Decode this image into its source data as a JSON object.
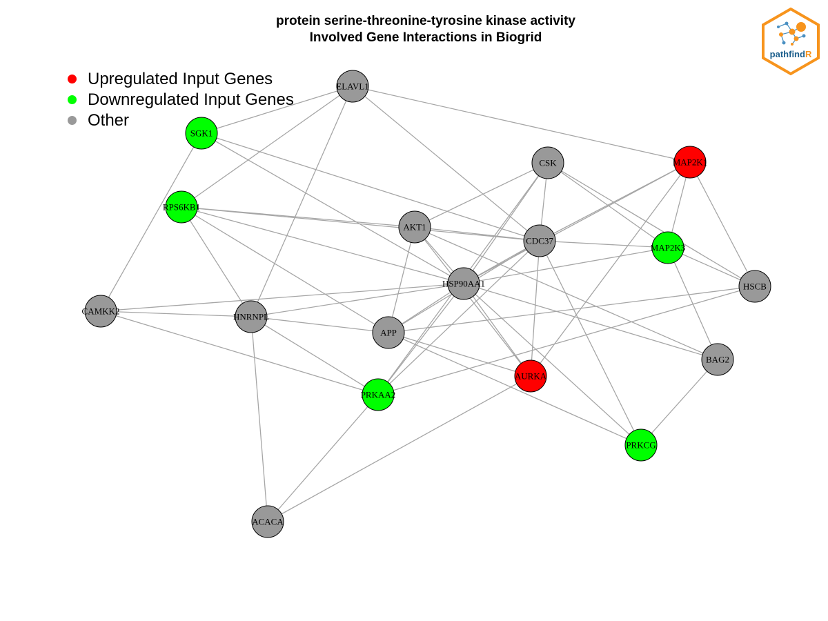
{
  "title": {
    "line1": "protein serine-threonine-tyrosine kinase activity",
    "line2": "Involved Gene Interactions in Biogrid"
  },
  "legend": [
    {
      "label": "Upregulated Input Genes",
      "color": "#ff0000"
    },
    {
      "label": "Downregulated Input Genes",
      "color": "#00ff00"
    },
    {
      "label": "Other",
      "color": "#999999"
    }
  ],
  "logo": {
    "text_main": "pathfind",
    "text_accent": "R",
    "border_color": "#f7941d",
    "text_color": "#1b5e8c"
  },
  "colors": {
    "up": "#ff0000",
    "down": "#00ff00",
    "other": "#999999",
    "edge": "#a6a6a6"
  },
  "nodes": [
    {
      "id": "ELAVL1",
      "status": "other"
    },
    {
      "id": "SGK1",
      "status": "down"
    },
    {
      "id": "CSK",
      "status": "other"
    },
    {
      "id": "MAP2K1",
      "status": "up"
    },
    {
      "id": "RPS6KB1",
      "status": "down"
    },
    {
      "id": "AKT1",
      "status": "other"
    },
    {
      "id": "CDC37",
      "status": "other"
    },
    {
      "id": "MAP2K3",
      "status": "down"
    },
    {
      "id": "HSP90AA1",
      "status": "other"
    },
    {
      "id": "HSCB",
      "status": "other"
    },
    {
      "id": "CAMKK2",
      "status": "other"
    },
    {
      "id": "HNRNPL",
      "status": "other"
    },
    {
      "id": "APP",
      "status": "other"
    },
    {
      "id": "BAG2",
      "status": "other"
    },
    {
      "id": "AURKA",
      "status": "up"
    },
    {
      "id": "PRKAA2",
      "status": "down"
    },
    {
      "id": "PRKCG",
      "status": "down"
    },
    {
      "id": "ACACA",
      "status": "other"
    }
  ],
  "edges": [
    [
      "ELAVL1",
      "SGK1"
    ],
    [
      "ELAVL1",
      "MAP2K1"
    ],
    [
      "ELAVL1",
      "CDC37"
    ],
    [
      "ELAVL1",
      "RPS6KB1"
    ],
    [
      "ELAVL1",
      "HNRNPL"
    ],
    [
      "SGK1",
      "CAMKK2"
    ],
    [
      "SGK1",
      "HSP90AA1"
    ],
    [
      "SGK1",
      "CDC37"
    ],
    [
      "CSK",
      "AKT1"
    ],
    [
      "CSK",
      "CDC37"
    ],
    [
      "CSK",
      "HSP90AA1"
    ],
    [
      "CSK",
      "MAP2K3"
    ],
    [
      "CSK",
      "HSCB"
    ],
    [
      "CSK",
      "PRKAA2"
    ],
    [
      "MAP2K1",
      "CDC37"
    ],
    [
      "MAP2K1",
      "HSP90AA1"
    ],
    [
      "MAP2K1",
      "MAP2K3"
    ],
    [
      "MAP2K1",
      "HSCB"
    ],
    [
      "MAP2K1",
      "AURKA"
    ],
    [
      "RPS6KB1",
      "AKT1"
    ],
    [
      "RPS6KB1",
      "CDC37"
    ],
    [
      "RPS6KB1",
      "HSP90AA1"
    ],
    [
      "RPS6KB1",
      "HNRNPL"
    ],
    [
      "RPS6KB1",
      "APP"
    ],
    [
      "AKT1",
      "CDC37"
    ],
    [
      "AKT1",
      "HSP90AA1"
    ],
    [
      "AKT1",
      "APP"
    ],
    [
      "AKT1",
      "AURKA"
    ],
    [
      "AKT1",
      "BAG2"
    ],
    [
      "CDC37",
      "MAP2K3"
    ],
    [
      "CDC37",
      "HSP90AA1"
    ],
    [
      "CDC37",
      "AURKA"
    ],
    [
      "CDC37",
      "PRKCG"
    ],
    [
      "CDC37",
      "APP"
    ],
    [
      "CDC37",
      "PRKAA2"
    ],
    [
      "MAP2K3",
      "HSP90AA1"
    ],
    [
      "MAP2K3",
      "HSCB"
    ],
    [
      "MAP2K3",
      "BAG2"
    ],
    [
      "HSP90AA1",
      "CAMKK2"
    ],
    [
      "HSP90AA1",
      "HNRNPL"
    ],
    [
      "HSP90AA1",
      "APP"
    ],
    [
      "HSP90AA1",
      "BAG2"
    ],
    [
      "HSP90AA1",
      "AURKA"
    ],
    [
      "HSP90AA1",
      "PRKCG"
    ],
    [
      "HSP90AA1",
      "PRKAA2"
    ],
    [
      "HSCB",
      "APP"
    ],
    [
      "HSCB",
      "PRKAA2"
    ],
    [
      "CAMKK2",
      "HNRNPL"
    ],
    [
      "CAMKK2",
      "PRKAA2"
    ],
    [
      "HNRNPL",
      "APP"
    ],
    [
      "HNRNPL",
      "PRKAA2"
    ],
    [
      "HNRNPL",
      "ACACA"
    ],
    [
      "APP",
      "AURKA"
    ],
    [
      "APP",
      "PRKCG"
    ],
    [
      "BAG2",
      "PRKCG"
    ],
    [
      "AURKA",
      "ACACA"
    ],
    [
      "PRKAA2",
      "ACACA"
    ]
  ]
}
